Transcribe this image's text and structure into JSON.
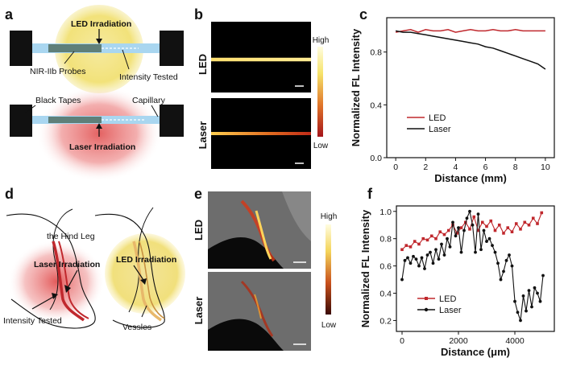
{
  "panels": {
    "a": {
      "label": "a",
      "led_irradiation": "LED Irradiation",
      "nir_probes": "NIR-IIb Probes",
      "intensity_tested": "Intensity Tested",
      "black_tapes": "Black Tapes",
      "capillary": "Capillary",
      "laser_irradiation": "Laser Irradiation",
      "colors": {
        "led_glow": "#f2e27a",
        "laser_glow": "#e25a5a",
        "capillary": "#9fd0ee",
        "probe": "#5c7f7a"
      }
    },
    "b": {
      "label": "b",
      "row_led": "LED",
      "row_laser": "Laser",
      "scale_high": "High",
      "scale_low": "Low"
    },
    "c": {
      "label": "c"
    },
    "d": {
      "label": "d",
      "hind_leg": "the Hind Leg",
      "laser_irradiation": "Laser Irradiation",
      "led_irradiation": "LED Irradiation",
      "intensity_tested": "Intensity Tested",
      "vessles": "Vessles"
    },
    "e": {
      "label": "e",
      "row_led": "LED",
      "row_laser": "Laser",
      "scale_high": "High",
      "scale_low": "Low"
    },
    "f": {
      "label": "f"
    }
  },
  "chart_data": [
    {
      "id": "c",
      "type": "line",
      "xlabel": "Distance (mm)",
      "ylabel": "Normalized FL Intensity",
      "xlim": [
        -0.6,
        10.6
      ],
      "ylim": [
        0.0,
        1.06
      ],
      "xticks": [
        0,
        2,
        4,
        6,
        8,
        10
      ],
      "yticks": [
        0.0,
        0.4,
        0.8
      ],
      "legend_position": "middle-left",
      "series": [
        {
          "name": "LED",
          "color": "#c0282d",
          "x": [
            0,
            0.5,
            1,
            1.5,
            2,
            2.5,
            3,
            3.5,
            4,
            4.5,
            5,
            5.5,
            6,
            6.5,
            7,
            7.5,
            8,
            8.5,
            9,
            9.5,
            10
          ],
          "y": [
            0.95,
            0.96,
            0.97,
            0.95,
            0.97,
            0.96,
            0.96,
            0.97,
            0.95,
            0.96,
            0.97,
            0.96,
            0.96,
            0.97,
            0.96,
            0.96,
            0.97,
            0.96,
            0.96,
            0.96,
            0.96
          ]
        },
        {
          "name": "Laser",
          "color": "#111111",
          "x": [
            0,
            0.5,
            1,
            1.5,
            2,
            2.5,
            3,
            3.5,
            4,
            4.5,
            5,
            5.5,
            6,
            6.5,
            7,
            7.5,
            8,
            8.5,
            9,
            9.5,
            10
          ],
          "y": [
            0.96,
            0.95,
            0.95,
            0.94,
            0.93,
            0.92,
            0.91,
            0.9,
            0.89,
            0.88,
            0.87,
            0.86,
            0.84,
            0.83,
            0.81,
            0.79,
            0.77,
            0.75,
            0.73,
            0.71,
            0.67
          ]
        }
      ]
    },
    {
      "id": "f",
      "type": "line",
      "xlabel": "Distance (μm)",
      "ylabel": "Normalized FL Intensity",
      "xlim": [
        -200,
        5400
      ],
      "ylim": [
        0.12,
        1.04
      ],
      "xticks": [
        0,
        2000,
        4000
      ],
      "yticks": [
        0.2,
        0.4,
        0.6,
        0.8,
        1.0
      ],
      "legend_position": "bottom-center",
      "series": [
        {
          "name": "LED",
          "color": "#c0282d",
          "x": [
            0,
            150,
            300,
            450,
            600,
            750,
            900,
            1050,
            1200,
            1350,
            1500,
            1650,
            1800,
            1950,
            2100,
            2250,
            2400,
            2550,
            2700,
            2850,
            3000,
            3150,
            3300,
            3450,
            3600,
            3750,
            3900,
            4050,
            4200,
            4350,
            4500,
            4650,
            4800,
            4950
          ],
          "y": [
            0.72,
            0.75,
            0.74,
            0.78,
            0.76,
            0.8,
            0.79,
            0.82,
            0.8,
            0.85,
            0.83,
            0.86,
            0.9,
            0.84,
            0.88,
            0.92,
            0.87,
            0.96,
            0.86,
            0.92,
            0.89,
            0.93,
            0.86,
            0.9,
            0.84,
            0.88,
            0.85,
            0.91,
            0.87,
            0.92,
            0.9,
            0.95,
            0.91,
            0.99
          ]
        },
        {
          "name": "Laser",
          "color": "#111111",
          "x": [
            0,
            100,
            200,
            300,
            400,
            500,
            600,
            700,
            800,
            900,
            1000,
            1100,
            1200,
            1300,
            1400,
            1500,
            1600,
            1700,
            1800,
            1900,
            2000,
            2100,
            2200,
            2300,
            2400,
            2500,
            2600,
            2700,
            2800,
            2900,
            3000,
            3100,
            3200,
            3300,
            3400,
            3500,
            3600,
            3700,
            3800,
            3900,
            4000,
            4100,
            4200,
            4300,
            4400,
            4500,
            4600,
            4700,
            4800,
            4900,
            5000
          ],
          "y": [
            0.5,
            0.64,
            0.66,
            0.62,
            0.67,
            0.65,
            0.6,
            0.66,
            0.58,
            0.68,
            0.7,
            0.62,
            0.72,
            0.65,
            0.76,
            0.68,
            0.8,
            0.74,
            0.92,
            0.82,
            0.88,
            0.7,
            0.86,
            0.95,
            1.0,
            0.9,
            0.7,
            0.98,
            0.72,
            0.86,
            0.78,
            0.8,
            0.75,
            0.7,
            0.62,
            0.5,
            0.56,
            0.64,
            0.68,
            0.6,
            0.34,
            0.26,
            0.2,
            0.38,
            0.27,
            0.42,
            0.3,
            0.44,
            0.4,
            0.34,
            0.53
          ]
        }
      ]
    }
  ]
}
